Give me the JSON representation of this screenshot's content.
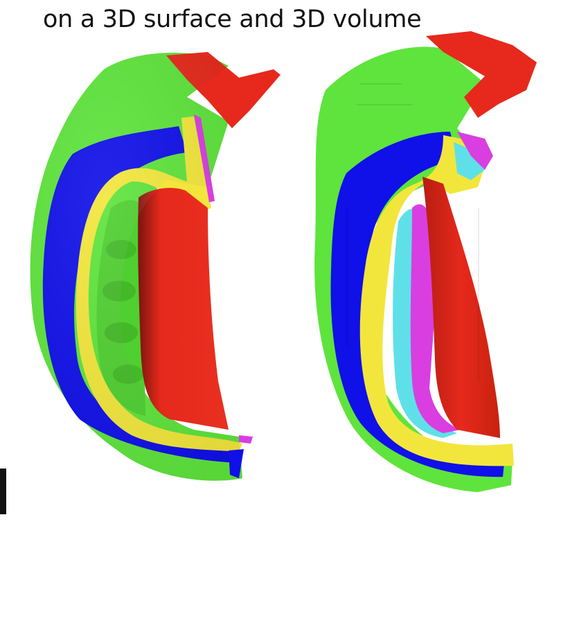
{
  "caption": "on a 3D surface and 3D volume",
  "colors": {
    "green": "#5ee43c",
    "red": "#e6291c",
    "blue": "#1010e8",
    "yellow": "#f2e63c",
    "magenta": "#d93ee0",
    "cyan": "#5fe0e8",
    "black": "#111111"
  },
  "panels": [
    {
      "name": "3d-surface-model",
      "region_colors": [
        "green",
        "red",
        "blue",
        "yellow",
        "magenta"
      ]
    },
    {
      "name": "3d-volume-model",
      "region_colors": [
        "green",
        "red",
        "blue",
        "yellow",
        "cyan",
        "magenta"
      ]
    }
  ]
}
